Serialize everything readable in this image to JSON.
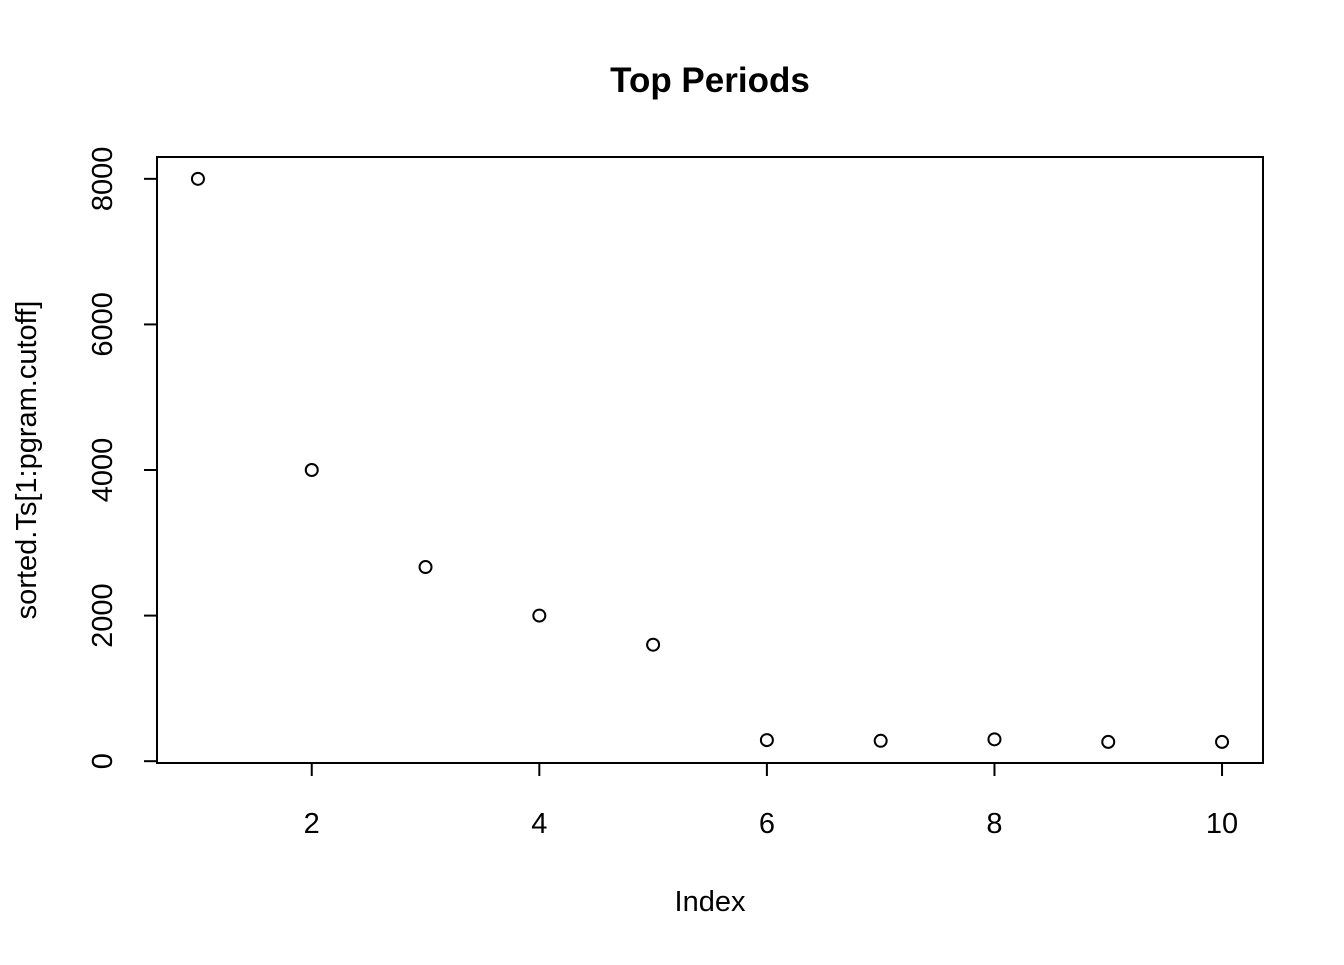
{
  "chart_data": {
    "type": "scatter",
    "title": "Top Periods",
    "xlabel": "Index",
    "ylabel": "sorted.Ts[1:pgram.cutoff]",
    "x": [
      1,
      2,
      3,
      4,
      5,
      6,
      7,
      8,
      9,
      10
    ],
    "y": [
      8000,
      4000,
      2667,
      2000,
      1600,
      290,
      280,
      300,
      265,
      265
    ],
    "xlim": [
      0.64,
      10.36
    ],
    "ylim": [
      -25,
      8300
    ],
    "x_ticks": [
      2,
      4,
      6,
      8,
      10
    ],
    "y_ticks": [
      0,
      2000,
      4000,
      6000,
      8000
    ],
    "grid": false,
    "marker": "open-circle",
    "point_color": "#000000"
  }
}
